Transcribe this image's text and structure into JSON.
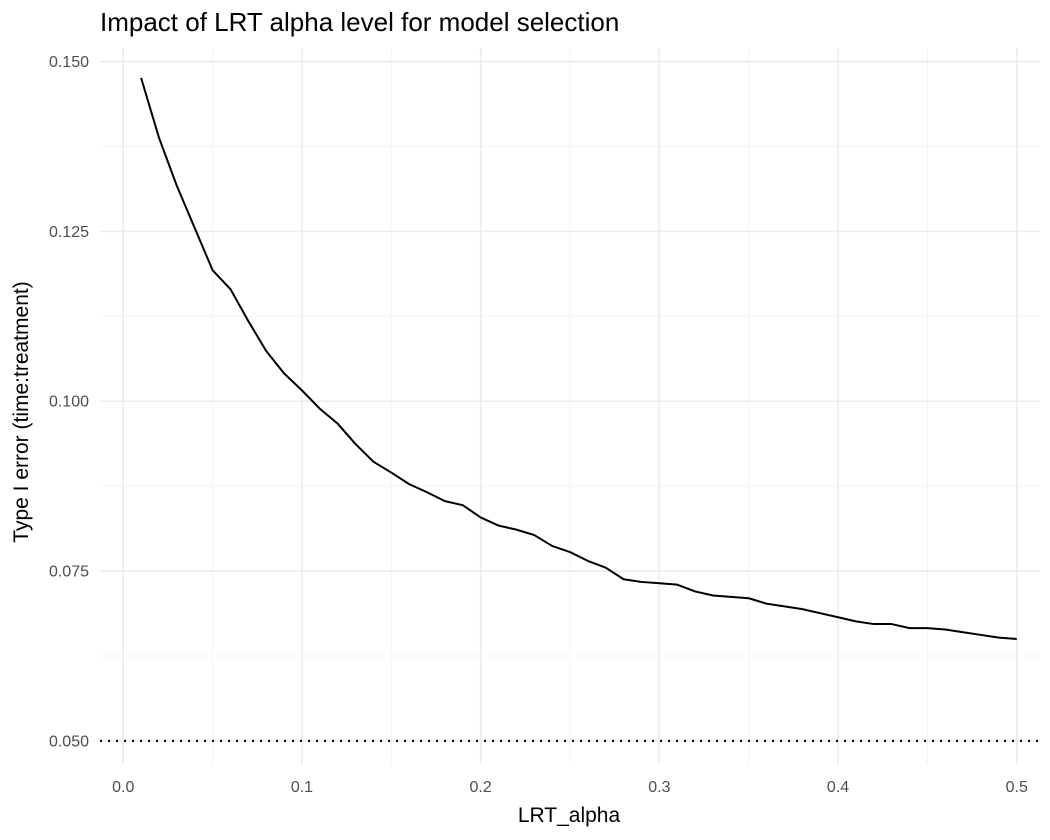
{
  "chart_data": {
    "type": "line",
    "title": "Impact of LRT alpha level for model selection",
    "xlabel": "LRT_alpha",
    "ylabel": "Type I error (time:treatment)",
    "xlim": [
      -0.013,
      0.513
    ],
    "ylim": [
      0.0466,
      0.152
    ],
    "x_ticks": [
      0.0,
      0.1,
      0.2,
      0.3,
      0.4,
      0.5
    ],
    "x_tick_labels": [
      "0.0",
      "0.1",
      "0.2",
      "0.3",
      "0.4",
      "0.5"
    ],
    "y_ticks": [
      0.05,
      0.075,
      0.1,
      0.125,
      0.15
    ],
    "y_tick_labels": [
      "0.050",
      "0.075",
      "0.100",
      "0.125",
      "0.150"
    ],
    "x_minor_ticks": [
      0.05,
      0.15,
      0.25,
      0.35,
      0.45
    ],
    "y_minor_ticks": [
      0.0625,
      0.0875,
      0.1125,
      0.1375
    ],
    "grid": true,
    "reference_line": {
      "y": 0.05,
      "style": "dotted",
      "color": "#000000"
    },
    "series": [
      {
        "color": "#000000",
        "x": [
          0.01,
          0.02,
          0.03,
          0.04,
          0.05,
          0.06,
          0.07,
          0.08,
          0.09,
          0.1,
          0.11,
          0.12,
          0.13,
          0.14,
          0.15,
          0.16,
          0.17,
          0.18,
          0.19,
          0.2,
          0.21,
          0.22,
          0.23,
          0.24,
          0.25,
          0.26,
          0.27,
          0.28,
          0.29,
          0.3,
          0.31,
          0.32,
          0.33,
          0.34,
          0.35,
          0.36,
          0.37,
          0.38,
          0.39,
          0.4,
          0.41,
          0.42,
          0.43,
          0.44,
          0.45,
          0.46,
          0.47,
          0.48,
          0.49,
          0.5
        ],
        "y": [
          0.1476,
          0.1388,
          0.1317,
          0.1255,
          0.1193,
          0.1165,
          0.1118,
          0.1074,
          0.1041,
          0.1016,
          0.0989,
          0.0967,
          0.0937,
          0.0911,
          0.0895,
          0.0878,
          0.0866,
          0.0853,
          0.0847,
          0.0829,
          0.0817,
          0.0811,
          0.0803,
          0.0787,
          0.0778,
          0.0765,
          0.0755,
          0.0738,
          0.0734,
          0.0732,
          0.073,
          0.072,
          0.0714,
          0.0712,
          0.071,
          0.0702,
          0.0698,
          0.0694,
          0.0688,
          0.0682,
          0.0676,
          0.0672,
          0.0672,
          0.0666,
          0.0666,
          0.0664,
          0.066,
          0.0656,
          0.0652,
          0.065
        ]
      }
    ]
  }
}
